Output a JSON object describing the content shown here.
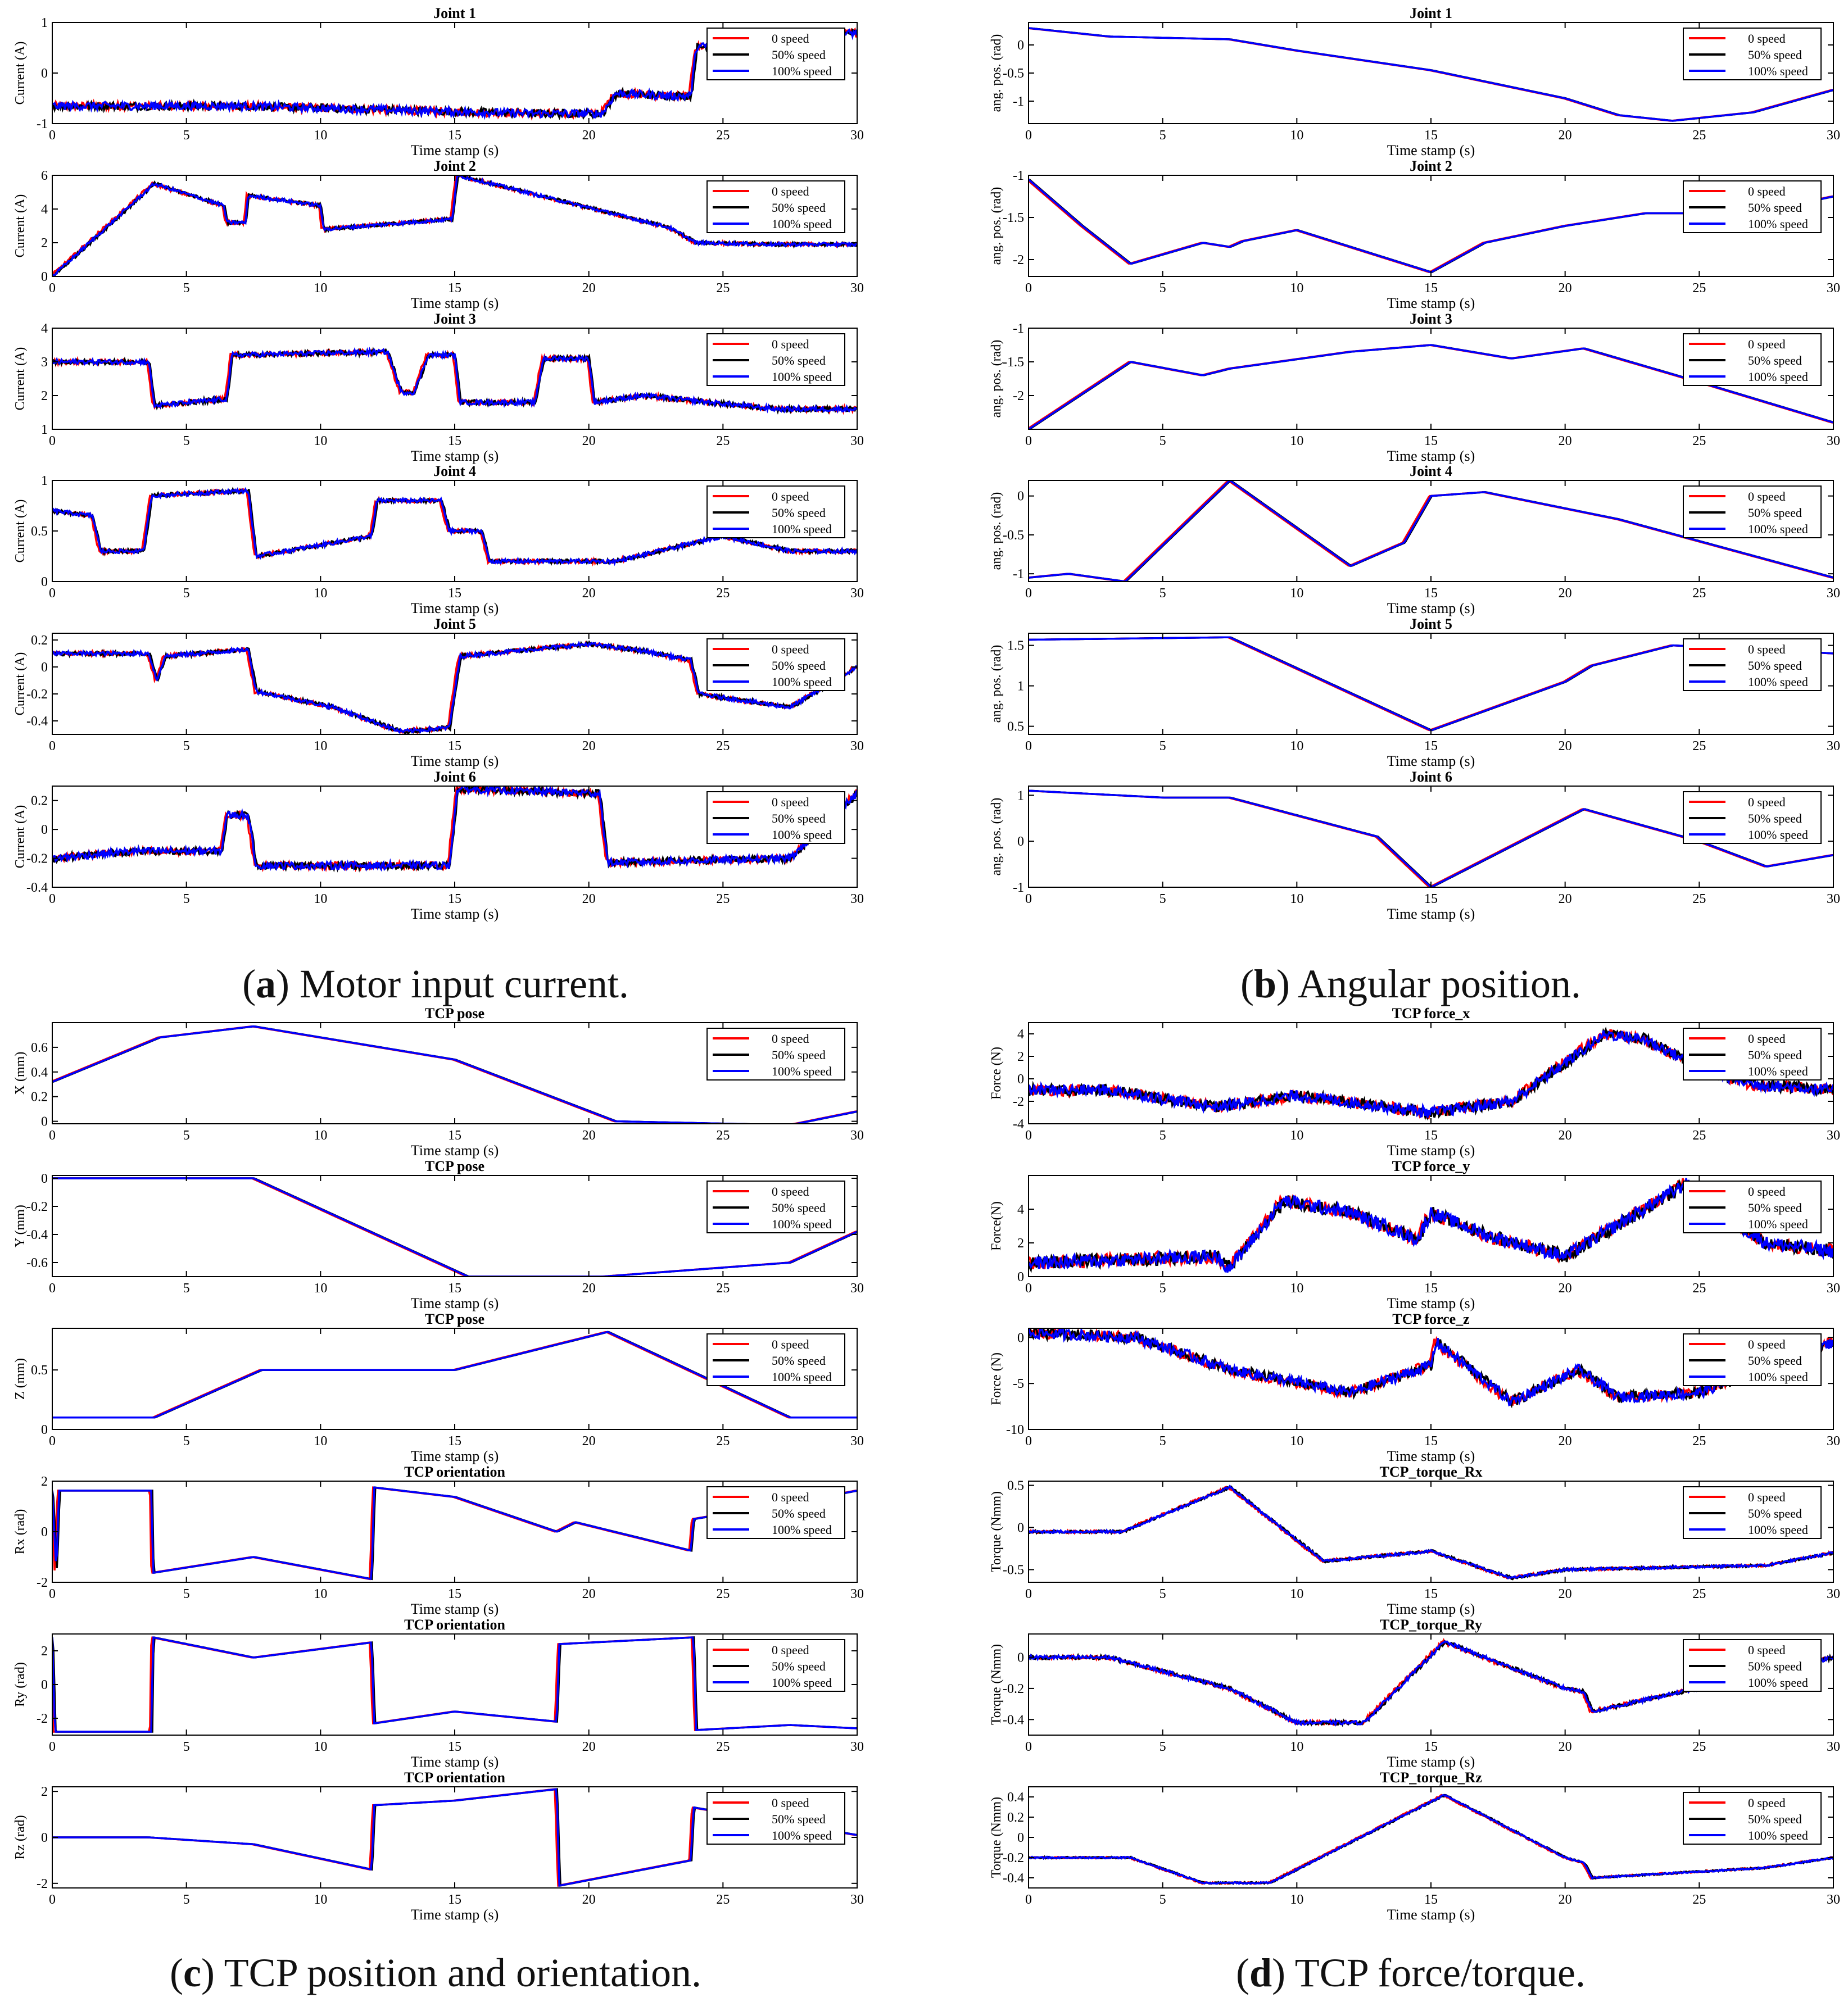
{
  "legend": [
    "0 speed",
    "50% speed",
    "100% speed"
  ],
  "series_colors": [
    "#ff0000",
    "#000000",
    "#0000ff"
  ],
  "xlabel": "Time stamp (s)",
  "xticks": [
    0,
    5,
    10,
    15,
    20,
    25,
    30
  ],
  "captions": [
    {
      "letter": "a",
      "text": " Motor input current."
    },
    {
      "letter": "b",
      "text": " Angular position."
    },
    {
      "letter": "c",
      "text": " TCP position and orientation."
    },
    {
      "letter": "d",
      "text": " TCP force/torque."
    }
  ],
  "chart_data": [
    {
      "type": "line",
      "panel": "a",
      "title": "Joint 1",
      "ylabel": "Current (A)",
      "xlim": [
        0,
        30
      ],
      "ylim": [
        -1,
        1
      ],
      "yticks": [
        "-1",
        "0",
        "1"
      ],
      "noise": 0.08,
      "x": [
        0,
        7,
        14,
        18,
        20.5,
        21,
        23,
        23.8,
        24,
        25,
        27.5,
        30
      ],
      "y": [
        -0.65,
        -0.65,
        -0.75,
        -0.8,
        -0.8,
        -0.4,
        -0.45,
        -0.45,
        0.5,
        0.6,
        0.65,
        0.8
      ]
    },
    {
      "type": "line",
      "panel": "a",
      "title": "Joint 2",
      "ylabel": "Current (A)",
      "xlim": [
        0,
        30
      ],
      "ylim": [
        0,
        6
      ],
      "yticks": [
        "0",
        "2",
        "4",
        "6"
      ],
      "noise": 0.1,
      "x": [
        0,
        3.8,
        6.4,
        6.5,
        7.2,
        7.3,
        10,
        10.1,
        14.9,
        15.1,
        23,
        24,
        27,
        30
      ],
      "y": [
        0,
        5.5,
        4.2,
        3.2,
        3.2,
        4.8,
        4.2,
        2.8,
        3.4,
        6.0,
        2.9,
        2.0,
        1.9,
        1.9
      ]
    },
    {
      "type": "line",
      "panel": "a",
      "title": "Joint 3",
      "ylabel": "Current (A)",
      "xlim": [
        0,
        30
      ],
      "ylim": [
        1,
        4
      ],
      "yticks": [
        "1",
        "2",
        "3",
        "4"
      ],
      "noise": 0.07,
      "x": [
        0,
        3.6,
        3.8,
        6.5,
        6.7,
        12.5,
        13,
        13.5,
        14,
        15,
        15.2,
        18,
        18.3,
        20,
        20.2,
        22,
        27,
        30
      ],
      "y": [
        3.0,
        3.0,
        1.7,
        1.9,
        3.2,
        3.3,
        2.1,
        2.1,
        3.2,
        3.2,
        1.8,
        1.8,
        3.1,
        3.1,
        1.8,
        2.0,
        1.6,
        1.6
      ]
    },
    {
      "type": "line",
      "panel": "a",
      "title": "Joint 4",
      "ylabel": "Current (A)",
      "xlim": [
        0,
        30
      ],
      "ylim": [
        0,
        1
      ],
      "yticks": [
        "0",
        "0.5",
        "1"
      ],
      "noise": 0.02,
      "x": [
        0,
        1.5,
        1.8,
        3.4,
        3.7,
        7.3,
        7.6,
        11.9,
        12.1,
        14.5,
        14.8,
        16,
        16.3,
        21,
        25,
        27.5,
        30
      ],
      "y": [
        0.7,
        0.65,
        0.3,
        0.3,
        0.85,
        0.9,
        0.25,
        0.45,
        0.8,
        0.8,
        0.5,
        0.5,
        0.2,
        0.2,
        0.45,
        0.3,
        0.3
      ]
    },
    {
      "type": "line",
      "panel": "a",
      "title": "Joint 5",
      "ylabel": "Current (A)",
      "xlim": [
        0,
        30
      ],
      "ylim": [
        -0.5,
        0.25
      ],
      "yticks": [
        "-0.4",
        "-0.2",
        "0",
        "0.2"
      ],
      "noise": 0.015,
      "x": [
        0,
        3.6,
        3.9,
        4.2,
        7.3,
        7.6,
        10.5,
        13,
        14.8,
        15.2,
        20,
        22,
        23.8,
        24.1,
        27.5,
        30
      ],
      "y": [
        0.1,
        0.1,
        -0.1,
        0.08,
        0.13,
        -0.18,
        -0.3,
        -0.48,
        -0.45,
        0.08,
        0.17,
        0.12,
        0.05,
        -0.2,
        -0.3,
        0.0
      ]
    },
    {
      "type": "line",
      "panel": "a",
      "title": "Joint 6",
      "ylabel": "Current (A)",
      "xlim": [
        0,
        30
      ],
      "ylim": [
        -0.4,
        0.3
      ],
      "yticks": [
        "-0.4",
        "-0.2",
        "0",
        "0.2"
      ],
      "noise": 0.025,
      "x": [
        0,
        3,
        6.3,
        6.5,
        7.3,
        7.6,
        14.8,
        15.1,
        20.4,
        20.7,
        27.5,
        30
      ],
      "y": [
        -0.2,
        -0.15,
        -0.15,
        0.1,
        0.1,
        -0.25,
        -0.25,
        0.28,
        0.25,
        -0.23,
        -0.2,
        0.25
      ]
    },
    {
      "type": "line",
      "panel": "b",
      "title": "Joint 1",
      "ylabel": "ang. pos. (rad)",
      "xlim": [
        0,
        30
      ],
      "ylim": [
        -1.4,
        0.4
      ],
      "yticks": [
        "-1",
        "-0.5",
        "0"
      ],
      "noise": 0,
      "x": [
        0,
        3,
        7.5,
        10,
        15,
        20,
        22,
        24,
        27,
        30
      ],
      "y": [
        0.3,
        0.15,
        0.1,
        -0.1,
        -0.45,
        -0.95,
        -1.25,
        -1.35,
        -1.2,
        -0.8
      ]
    },
    {
      "type": "line",
      "panel": "b",
      "title": "Joint 2",
      "ylabel": "ang. pos. (rad)",
      "xlim": [
        0,
        30
      ],
      "ylim": [
        -2.2,
        -1.0
      ],
      "yticks": [
        "-2",
        "-1.5",
        "-1"
      ],
      "noise": 0,
      "x": [
        0,
        2,
        3.8,
        6.5,
        7.5,
        8,
        10,
        15,
        17,
        20,
        23,
        27,
        30
      ],
      "y": [
        -1.05,
        -1.6,
        -2.05,
        -1.8,
        -1.85,
        -1.78,
        -1.65,
        -2.15,
        -1.8,
        -1.6,
        -1.45,
        -1.45,
        -1.25
      ]
    },
    {
      "type": "line",
      "panel": "b",
      "title": "Joint 3",
      "ylabel": "ang. pos. (rad)",
      "xlim": [
        0,
        30
      ],
      "ylim": [
        -2.5,
        -1.0
      ],
      "yticks": [
        "-2",
        "-1.5",
        "-1"
      ],
      "noise": 0,
      "x": [
        0,
        3.8,
        6.5,
        7.5,
        12,
        15,
        18,
        20.7,
        25,
        30
      ],
      "y": [
        -2.5,
        -1.5,
        -1.7,
        -1.6,
        -1.35,
        -1.25,
        -1.45,
        -1.3,
        -1.8,
        -2.4
      ]
    },
    {
      "type": "line",
      "panel": "b",
      "title": "Joint 4",
      "ylabel": "ang. pos. (rad)",
      "xlim": [
        0,
        30
      ],
      "ylim": [
        -1.1,
        0.2
      ],
      "yticks": [
        "-1",
        "-0.5",
        "0"
      ],
      "noise": 0,
      "x": [
        0,
        1.5,
        3.6,
        7.5,
        12,
        14,
        15,
        17,
        22,
        30
      ],
      "y": [
        -1.05,
        -1.0,
        -1.1,
        0.2,
        -0.9,
        -0.6,
        0.0,
        0.05,
        -0.3,
        -1.05
      ]
    },
    {
      "type": "line",
      "panel": "b",
      "title": "Joint 5",
      "ylabel": "ang. pos. (rad)",
      "xlim": [
        0,
        30
      ],
      "ylim": [
        0.4,
        1.65
      ],
      "yticks": [
        "0.5",
        "1",
        "1.5"
      ],
      "noise": 0,
      "x": [
        0,
        7.5,
        15,
        20,
        21,
        24,
        27.5,
        30
      ],
      "y": [
        1.57,
        1.6,
        0.45,
        1.05,
        1.25,
        1.5,
        1.45,
        1.4
      ]
    },
    {
      "type": "line",
      "panel": "b",
      "title": "Joint 6",
      "ylabel": "ang. pos. (rad)",
      "xlim": [
        0,
        30
      ],
      "ylim": [
        -1,
        1.2
      ],
      "yticks": [
        "-1",
        "0",
        "1"
      ],
      "noise": 0,
      "x": [
        0,
        5,
        7.5,
        13,
        15,
        20.7,
        25,
        27.5,
        30
      ],
      "y": [
        1.1,
        0.95,
        0.95,
        0.1,
        -1.0,
        0.7,
        0.0,
        -0.55,
        -0.3
      ]
    },
    {
      "type": "line",
      "panel": "c",
      "title": "TCP pose",
      "ylabel": "X (mm)",
      "xlim": [
        0,
        30
      ],
      "ylim": [
        -0.02,
        0.8
      ],
      "yticks": [
        "0",
        "0.2",
        "0.4",
        "0.6"
      ],
      "noise": 0,
      "x": [
        0,
        4,
        7.5,
        15,
        21,
        27.5,
        30
      ],
      "y": [
        0.32,
        0.68,
        0.77,
        0.5,
        0.0,
        -0.03,
        0.08
      ]
    },
    {
      "type": "line",
      "panel": "c",
      "title": "TCP pose",
      "ylabel": "Y (mm)",
      "xlim": [
        0,
        30
      ],
      "ylim": [
        -0.7,
        0.02
      ],
      "yticks": [
        "-0.6",
        "-0.4",
        "-0.2",
        "0"
      ],
      "noise": 0,
      "x": [
        0,
        7.5,
        15.5,
        20.5,
        27.5,
        30
      ],
      "y": [
        0,
        0,
        -0.7,
        -0.7,
        -0.6,
        -0.38
      ]
    },
    {
      "type": "line",
      "panel": "c",
      "title": "TCP pose",
      "ylabel": "Z (mm)",
      "xlim": [
        0,
        30
      ],
      "ylim": [
        0,
        0.85
      ],
      "yticks": [
        "0",
        "0.5"
      ],
      "noise": 0,
      "x": [
        0,
        3.8,
        7.8,
        15,
        20.7,
        27.5,
        30
      ],
      "y": [
        0.1,
        0.1,
        0.5,
        0.5,
        0.82,
        0.1,
        0.1
      ]
    },
    {
      "type": "line",
      "panel": "c",
      "title": "TCP orientation",
      "ylabel": "Rx (rad)",
      "xlim": [
        0,
        30
      ],
      "ylim": [
        -1.6,
        1.6
      ],
      "yticks": [
        "-2",
        "0",
        "2"
      ],
      "noise": 0,
      "x": [
        0,
        0.15,
        0.25,
        3.7,
        3.75,
        7.5,
        11.9,
        12.0,
        15,
        18.8,
        19.5,
        23.8,
        23.9,
        27.5,
        30
      ],
      "y": [
        1.3,
        -1.3,
        1.3,
        1.3,
        -1.3,
        -0.8,
        -1.5,
        1.4,
        1.1,
        0.0,
        0.3,
        -0.6,
        0.4,
        0.9,
        1.3
      ]
    },
    {
      "type": "line",
      "panel": "c",
      "title": "TCP orientation",
      "ylabel": "Ry (rad)",
      "xlim": [
        0,
        30
      ],
      "ylim": [
        -3,
        3
      ],
      "yticks": [
        "-2",
        "0",
        "2"
      ],
      "noise": 0,
      "x": [
        0,
        0.1,
        0.2,
        3.7,
        3.75,
        7.5,
        11.9,
        12.0,
        15,
        18.8,
        18.9,
        23.9,
        24.0,
        27.5,
        30
      ],
      "y": [
        2.8,
        -2.8,
        -2.8,
        -2.8,
        2.8,
        1.6,
        2.5,
        -2.3,
        -1.6,
        -2.2,
        2.4,
        2.8,
        -2.7,
        -2.4,
        -2.6
      ]
    },
    {
      "type": "line",
      "panel": "c",
      "title": "TCP orientation",
      "ylabel": "Rz (rad)",
      "xlim": [
        0,
        30
      ],
      "ylim": [
        -2.2,
        2.2
      ],
      "yticks": [
        "-2",
        "0",
        "2"
      ],
      "noise": 0,
      "x": [
        0,
        3.6,
        7.5,
        11.9,
        12.0,
        15,
        18.8,
        18.9,
        23.8,
        23.9,
        27.5,
        30
      ],
      "y": [
        0,
        0,
        -0.3,
        -1.4,
        1.4,
        1.6,
        2.1,
        -2.1,
        -1.0,
        1.3,
        0.6,
        0.1
      ]
    },
    {
      "type": "line",
      "panel": "d",
      "title": "TCP force_x",
      "ylabel": "Force (N)",
      "xlim": [
        0,
        30
      ],
      "ylim": [
        -4,
        5
      ],
      "yticks": [
        "-4",
        "-2",
        "0",
        "2",
        "4"
      ],
      "noise": 0.5,
      "x": [
        0,
        3,
        7,
        10,
        15,
        18,
        21.5,
        23,
        25,
        27,
        30
      ],
      "y": [
        -1,
        -1,
        -2.5,
        -1.5,
        -3,
        -2,
        4,
        3.5,
        1,
        -0.5,
        -1
      ]
    },
    {
      "type": "line",
      "panel": "d",
      "title": "TCP force_y",
      "ylabel": "Force(N)",
      "xlim": [
        0,
        30
      ],
      "ylim": [
        0,
        6
      ],
      "yticks": [
        "0",
        "2",
        "4"
      ],
      "noise": 0.4,
      "x": [
        0,
        7,
        7.5,
        9.5,
        12,
        14.5,
        15,
        17,
        20,
        24.5,
        25.5,
        27.5,
        30
      ],
      "y": [
        0.8,
        1.2,
        0.5,
        4.5,
        3.8,
        2.2,
        3.8,
        2.5,
        1.2,
        5.5,
        4,
        2,
        1.5
      ]
    },
    {
      "type": "line",
      "panel": "d",
      "title": "TCP force_z",
      "ylabel": "Force (N)",
      "xlim": [
        0,
        30
      ],
      "ylim": [
        -10,
        1
      ],
      "yticks": [
        "-10",
        "-5",
        "0"
      ],
      "noise": 0.6,
      "x": [
        0,
        4,
        7.5,
        12,
        15,
        15.2,
        18,
        20.5,
        22,
        25,
        30
      ],
      "y": [
        0.5,
        0,
        -3.5,
        -6,
        -3,
        -0.5,
        -7,
        -3.5,
        -6.5,
        -6,
        -0.5
      ]
    },
    {
      "type": "line",
      "panel": "d",
      "title": "TCP_torque_Rx",
      "ylabel": "Torque (Nmm)",
      "xlim": [
        0,
        30
      ],
      "ylim": [
        -0.65,
        0.55
      ],
      "yticks": [
        "-0.5",
        "0",
        "0.5"
      ],
      "noise": 0.015,
      "x": [
        0,
        3.5,
        7.5,
        11,
        15,
        18,
        20,
        27.5,
        30
      ],
      "y": [
        -0.05,
        -0.05,
        0.48,
        -0.4,
        -0.28,
        -0.6,
        -0.5,
        -0.45,
        -0.3
      ]
    },
    {
      "type": "line",
      "panel": "d",
      "title": "TCP_torque_Ry",
      "ylabel": "Torque (Nmm)",
      "xlim": [
        0,
        30
      ],
      "ylim": [
        -0.5,
        0.15
      ],
      "yticks": [
        "-0.4",
        "-0.2",
        "0"
      ],
      "noise": 0.012,
      "x": [
        0,
        3,
        7.5,
        10,
        12.5,
        15.5,
        20,
        20.7,
        21,
        27.5,
        30
      ],
      "y": [
        0,
        0,
        -0.2,
        -0.42,
        -0.42,
        0.1,
        -0.2,
        -0.22,
        -0.35,
        -0.1,
        0
      ]
    },
    {
      "type": "line",
      "panel": "d",
      "title": "TCP_torque_Rz",
      "ylabel": "Torque (Nmm)",
      "xlim": [
        0,
        30
      ],
      "ylim": [
        -0.5,
        0.5
      ],
      "yticks": [
        "-0.4",
        "-0.2",
        "0",
        "0.2",
        "0.4"
      ],
      "noise": 0.008,
      "x": [
        0,
        3.8,
        6.5,
        9,
        15.5,
        20,
        20.7,
        21,
        27.5,
        30
      ],
      "y": [
        -0.2,
        -0.2,
        -0.45,
        -0.45,
        0.42,
        -0.2,
        -0.25,
        -0.4,
        -0.3,
        -0.2
      ]
    }
  ]
}
